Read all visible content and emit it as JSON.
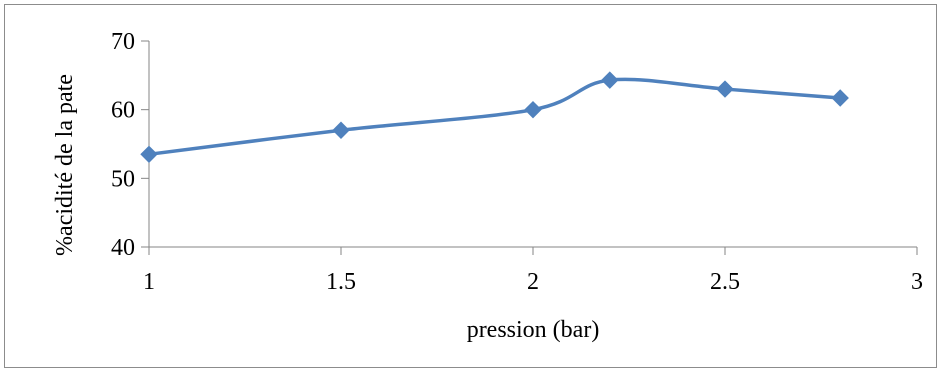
{
  "chart_data": {
    "type": "line",
    "title": "",
    "xlabel": "pression (bar)",
    "ylabel": "%acidité de la pate",
    "xlim": [
      1,
      3
    ],
    "ylim": [
      40,
      70
    ],
    "xticks": [
      1,
      1.5,
      2,
      2.5,
      3
    ],
    "yticks": [
      40,
      50,
      60,
      70
    ],
    "xtick_labels": [
      "1",
      "1.5",
      "2",
      "2.5",
      "3"
    ],
    "ytick_labels": [
      "40",
      "50",
      "60",
      "70"
    ],
    "grid": false,
    "legend": "none",
    "smoothed": true,
    "marker": "diamond",
    "series": [
      {
        "x": [
          1,
          1.5,
          2,
          2.2,
          2.5,
          2.8
        ],
        "y": [
          53.5,
          57,
          60,
          64.3,
          63,
          61.7
        ],
        "color": "#4f81bd"
      }
    ]
  }
}
